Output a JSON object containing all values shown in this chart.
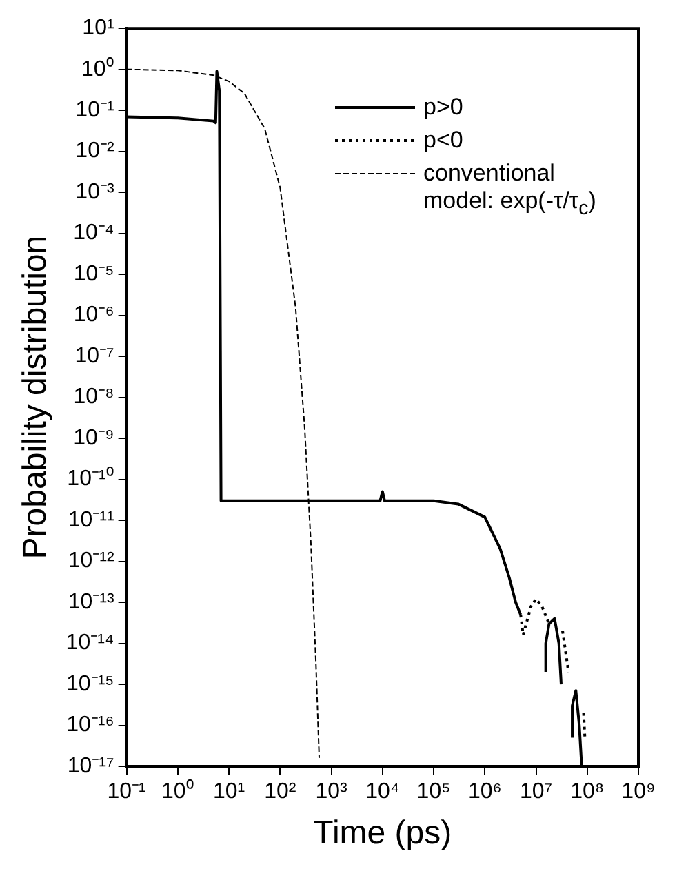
{
  "chart_data": {
    "type": "line",
    "xlabel": "Time (ps)",
    "ylabel": "Probability distribution",
    "log": "xy",
    "grid": false,
    "legend": "top right",
    "marker": "none",
    "xlim": [
      0.1,
      1000000000
    ],
    "xticks": [
      {
        "value": 0.1,
        "label": "10⁻¹"
      },
      {
        "value": 1,
        "label": "10⁰"
      },
      {
        "value": 10,
        "label": "10¹"
      },
      {
        "value": 100,
        "label": "10²"
      },
      {
        "value": 1000,
        "label": "10³"
      },
      {
        "value": 10000,
        "label": "10⁴"
      },
      {
        "value": 100000,
        "label": "10⁵"
      },
      {
        "value": 1000000,
        "label": "10⁶"
      },
      {
        "value": 10000000,
        "label": "10⁷"
      },
      {
        "value": 100000000,
        "label": "10⁸"
      },
      {
        "value": 1000000000,
        "label": "10⁹"
      }
    ],
    "ylim": [
      1e-17,
      10
    ],
    "yticks": [
      {
        "value": 10,
        "label": "10¹"
      },
      {
        "value": 1,
        "label": "10⁰"
      },
      {
        "value": 0.1,
        "label": "10⁻¹"
      },
      {
        "value": 0.01,
        "label": "10⁻²"
      },
      {
        "value": 0.001,
        "label": "10⁻³"
      },
      {
        "value": 0.0001,
        "label": "10⁻⁴"
      },
      {
        "value": 1e-05,
        "label": "10⁻⁵"
      },
      {
        "value": 1e-06,
        "label": "10⁻⁶"
      },
      {
        "value": 1e-07,
        "label": "10⁻⁷"
      },
      {
        "value": 1e-08,
        "label": "10⁻⁸"
      },
      {
        "value": 1e-09,
        "label": "10⁻⁹"
      },
      {
        "value": 1e-10,
        "label": "10⁻¹⁰"
      },
      {
        "value": 1e-11,
        "label": "10⁻¹¹"
      },
      {
        "value": 1e-12,
        "label": "10⁻¹²"
      },
      {
        "value": 1e-13,
        "label": "10⁻¹³"
      },
      {
        "value": 1e-14,
        "label": "10⁻¹⁴"
      },
      {
        "value": 1e-15,
        "label": "10⁻¹⁵"
      },
      {
        "value": 1e-16,
        "label": "10⁻¹⁶"
      },
      {
        "value": 1e-17,
        "label": "10⁻¹⁷"
      }
    ],
    "series": [
      {
        "name": "p>0",
        "color": "#000000",
        "line_style": "solid",
        "x": [
          0.1,
          1,
          5,
          5.5,
          5.8,
          6.5,
          7,
          8,
          100,
          1000,
          9000,
          10000,
          11000,
          100000,
          300000,
          1000000,
          2000000,
          3000000,
          4000000,
          5000000,
          6000000,
          15500000,
          15500000,
          18000000,
          23000000,
          28000000,
          31000000,
          40000000,
          51000000,
          51000000,
          60000000,
          70000000,
          78000000
        ],
        "values": [
          0.07,
          0.065,
          0.055,
          0.05,
          0.9,
          0.3,
          3e-11,
          3e-11,
          3e-11,
          3e-11,
          3e-11,
          5e-11,
          3e-11,
          3e-11,
          2.5e-11,
          1.2e-11,
          2e-12,
          4e-13,
          1e-13,
          5e-14,
          null,
          2e-15,
          1e-14,
          3e-14,
          4e-14,
          1e-14,
          1e-15,
          null,
          5e-17,
          3e-16,
          7e-16,
          1e-16,
          1e-17
        ]
      },
      {
        "name": "p<0",
        "color": "#000000",
        "line_style": "dotted",
        "x": [
          5000000,
          5600000,
          8000000,
          10000000,
          13000000,
          18000000,
          22000000,
          33000000,
          38000000,
          43000000,
          50000000,
          85000000,
          90000000
        ],
        "values": [
          5e-14,
          1.6e-14,
          8e-14,
          1.2e-13,
          8e-14,
          3e-14,
          null,
          2e-14,
          6e-15,
          2e-15,
          null,
          2e-16,
          5e-17
        ]
      },
      {
        "name": "conventional model: exp(-τ/τ$_{c}$)",
        "color": "#000000",
        "line_style": "dashed",
        "x": [
          0.1,
          1,
          5,
          10,
          20,
          50,
          100,
          200,
          300,
          400,
          500,
          580
        ],
        "values": [
          1,
          0.94,
          0.72,
          0.51,
          0.26,
          0.036,
          0.0013,
          1.6e-06,
          2e-09,
          2.6e-12,
          3.3e-15,
          1.6e-17
        ]
      }
    ]
  }
}
